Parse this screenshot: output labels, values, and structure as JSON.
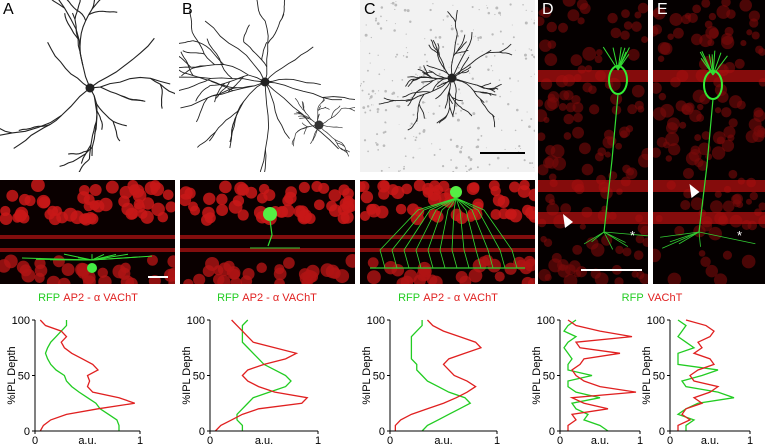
{
  "panels": [
    {
      "label": "A"
    },
    {
      "label": "B"
    },
    {
      "label": "C"
    },
    {
      "label": "D",
      "annotation": "*"
    },
    {
      "label": "E",
      "annotation": "*"
    }
  ],
  "chart_data": [
    {
      "type": "line",
      "orientation": "horizontal",
      "depth": [
        0,
        5,
        10,
        15,
        20,
        25,
        30,
        35,
        40,
        45,
        50,
        55,
        60,
        65,
        70,
        75,
        80,
        85,
        90,
        95,
        100
      ],
      "series": [
        {
          "name": "RFP",
          "color": "#22cc22",
          "values": [
            0.8,
            0.8,
            0.78,
            0.7,
            0.62,
            0.58,
            0.5,
            0.42,
            0.35,
            0.3,
            0.28,
            0.2,
            0.15,
            0.12,
            0.1,
            0.12,
            0.15,
            0.2,
            0.25,
            0.3,
            0.3
          ]
        },
        {
          "name": "AP2 - α VAChT",
          "color": "#e02020",
          "values": [
            0.05,
            0.08,
            0.15,
            0.3,
            0.6,
            0.95,
            0.8,
            0.55,
            0.5,
            0.52,
            0.5,
            0.6,
            0.55,
            0.45,
            0.35,
            0.28,
            0.25,
            0.3,
            0.25,
            0.1,
            0.05
          ]
        }
      ],
      "xlim": [
        0,
        1
      ],
      "xticks": [
        0,
        1
      ],
      "ylim": [
        0,
        100
      ],
      "yticks": [
        0,
        50,
        100
      ],
      "xlabel": "a.u.",
      "ylabel": "%IPL Depth"
    },
    {
      "type": "line",
      "orientation": "horizontal",
      "depth": [
        0,
        5,
        10,
        15,
        20,
        25,
        30,
        35,
        40,
        45,
        50,
        55,
        60,
        65,
        70,
        75,
        80,
        85,
        90,
        95,
        100
      ],
      "series": [
        {
          "name": "RFP",
          "color": "#22cc22",
          "values": [
            0.3,
            0.3,
            0.25,
            0.25,
            0.3,
            0.35,
            0.4,
            0.55,
            0.7,
            0.75,
            0.7,
            0.6,
            0.5,
            0.45,
            0.4,
            0.35,
            0.3,
            0.3,
            0.3,
            0.3,
            0.35
          ]
        },
        {
          "name": "AP2 - α VAChT",
          "color": "#e02020",
          "values": [
            0.05,
            0.1,
            0.2,
            0.3,
            0.45,
            0.85,
            0.9,
            0.6,
            0.45,
            0.35,
            0.3,
            0.35,
            0.5,
            0.7,
            0.8,
            0.6,
            0.4,
            0.35,
            0.3,
            0.25,
            0.2
          ]
        }
      ],
      "xlim": [
        0,
        1
      ],
      "xticks": [
        0,
        1
      ],
      "ylim": [
        0,
        100
      ],
      "yticks": [
        0,
        50,
        100
      ],
      "xlabel": "a.u.",
      "ylabel": "%IPL Depth"
    },
    {
      "type": "line",
      "orientation": "horizontal",
      "depth": [
        0,
        5,
        10,
        15,
        20,
        25,
        30,
        35,
        40,
        45,
        50,
        55,
        60,
        65,
        70,
        75,
        80,
        85,
        90,
        95,
        100
      ],
      "series": [
        {
          "name": "RFP",
          "color": "#22cc22",
          "values": [
            0.3,
            0.35,
            0.45,
            0.55,
            0.65,
            0.75,
            0.7,
            0.55,
            0.45,
            0.35,
            0.3,
            0.25,
            0.25,
            0.2,
            0.2,
            0.2,
            0.2,
            0.2,
            0.25,
            0.3,
            0.3
          ]
        },
        {
          "name": "AP2 - α VAChT",
          "color": "#e02020",
          "values": [
            0.05,
            0.05,
            0.1,
            0.2,
            0.35,
            0.5,
            0.62,
            0.72,
            0.8,
            0.72,
            0.6,
            0.55,
            0.5,
            0.55,
            0.7,
            0.85,
            0.8,
            0.65,
            0.5,
            0.4,
            0.35
          ]
        }
      ],
      "xlim": [
        0,
        1
      ],
      "xticks": [
        0,
        1
      ],
      "ylim": [
        0,
        100
      ],
      "yticks": [
        0,
        50,
        100
      ],
      "xlabel": "a.u.",
      "ylabel": "%IPL Depth"
    },
    {
      "type": "line",
      "orientation": "horizontal",
      "depth": [
        0,
        5,
        10,
        15,
        20,
        25,
        30,
        35,
        40,
        45,
        50,
        55,
        60,
        65,
        70,
        75,
        80,
        85,
        90,
        95,
        100
      ],
      "series": [
        {
          "name": "RFP",
          "color": "#22cc22",
          "values": [
            0.6,
            0.5,
            0.3,
            0.35,
            0.2,
            0.15,
            0.5,
            0.2,
            0.1,
            0.1,
            0.4,
            0.1,
            0.1,
            0.15,
            0.1,
            0.05,
            0.1,
            0.2,
            0.05,
            0.1,
            0.2
          ]
        },
        {
          "name": "VAChT",
          "color": "#e02020",
          "values": [
            0.1,
            0.1,
            0.2,
            0.15,
            0.6,
            0.3,
            0.15,
            0.95,
            0.5,
            0.3,
            0.2,
            0.15,
            0.25,
            0.3,
            0.75,
            0.25,
            0.2,
            0.9,
            0.5,
            0.2,
            0.1
          ]
        }
      ],
      "xlim": [
        0,
        1
      ],
      "xticks": [
        0,
        1
      ],
      "ylim": [
        0,
        100
      ],
      "yticks": [
        0,
        50,
        100
      ],
      "xlabel": "a.u.",
      "ylabel": "%IPL Depth"
    },
    {
      "type": "line",
      "orientation": "horizontal",
      "depth": [
        0,
        5,
        10,
        15,
        20,
        25,
        30,
        35,
        40,
        45,
        50,
        55,
        60,
        65,
        70,
        75,
        80,
        85,
        90,
        95,
        100
      ],
      "series": [
        {
          "color": "#22cc22",
          "values": [
            0.2,
            0.2,
            0.3,
            0.1,
            0.2,
            0.35,
            0.8,
            0.6,
            0.2,
            0.15,
            0.4,
            0.6,
            0.1,
            0.1,
            0.1,
            0.3,
            0.2,
            0.1,
            0.15,
            0.2,
            0.1
          ]
        },
        {
          "color": "#e02020",
          "values": [
            0.1,
            0.1,
            0.25,
            0.15,
            0.2,
            0.4,
            0.3,
            0.5,
            0.6,
            0.3,
            0.25,
            0.35,
            0.55,
            0.5,
            0.3,
            0.4,
            0.35,
            0.5,
            0.55,
            0.45,
            0.2
          ]
        }
      ],
      "xlim": [
        0,
        1
      ],
      "xticks": [
        0,
        1
      ],
      "ylim": [
        0,
        100
      ],
      "yticks": [
        0,
        50,
        100
      ],
      "xlabel": "a.u.",
      "ylabel": "%IPL Depth"
    }
  ]
}
